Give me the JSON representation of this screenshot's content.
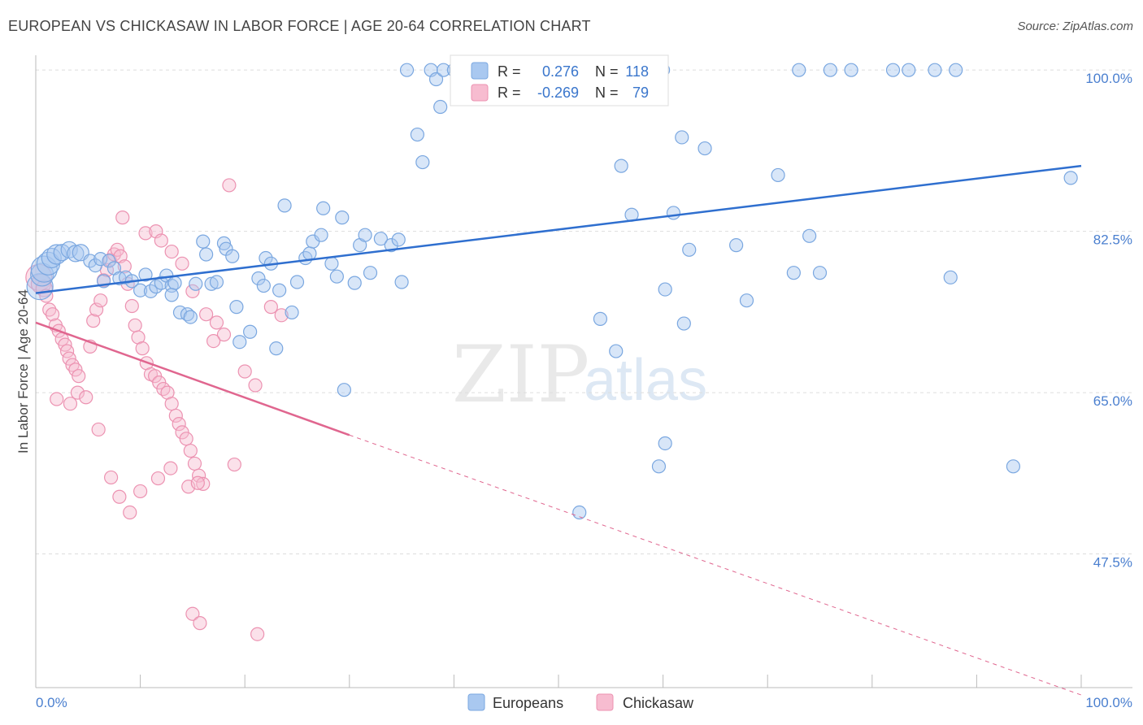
{
  "title": "EUROPEAN VS CHICKASAW IN LABOR FORCE | AGE 20-64 CORRELATION CHART",
  "source": "Source: ZipAtlas.com",
  "watermark": {
    "zip": "ZIP",
    "atlas": "atlas"
  },
  "colors": {
    "europeans_fill": "#a9c8f0",
    "europeans_stroke": "#7aa7e0",
    "europeans_line": "#2f6fcf",
    "chickasaw_fill": "#f7bcd0",
    "chickasaw_stroke": "#ec92b1",
    "chickasaw_line": "#e0668f",
    "grid": "#dddddd",
    "tick_text": "#4a7fcf"
  },
  "stats_box": {
    "rows": [
      {
        "r_label": "R =",
        "r_value": "0.276",
        "n_label": "N =",
        "n_value": "118"
      },
      {
        "r_label": "R =",
        "r_value": "-0.269",
        "n_label": "N =",
        "n_value": "79"
      }
    ]
  },
  "legend": {
    "items": [
      {
        "label": "Europeans"
      },
      {
        "label": "Chickasaw"
      }
    ]
  },
  "chart_data": {
    "type": "scatter",
    "title": "EUROPEAN VS CHICKASAW IN LABOR FORCE | AGE 20-64 CORRELATION CHART",
    "xlabel": "",
    "ylabel": "In Labor Force | Age 20-64",
    "xlim": [
      0,
      100
    ],
    "ylim": [
      33,
      102
    ],
    "x_tick_labels": [
      "0.0%",
      "100.0%"
    ],
    "y_ticks": [
      47.5,
      65.0,
      82.5,
      100.0
    ],
    "y_tick_labels": [
      "47.5%",
      "65.0%",
      "82.5%",
      "100.0%"
    ],
    "grid": true,
    "legend_position": "bottom-center",
    "series": [
      {
        "name": "Europeans",
        "R": 0.276,
        "N": 118,
        "trend": {
          "x0": 0,
          "y0": 75.8,
          "x1": 100,
          "y1": 89.6
        },
        "points": [
          [
            0.4,
            76.5,
            16
          ],
          [
            0.6,
            77.8,
            14
          ],
          [
            0.8,
            78.4,
            16
          ],
          [
            1.2,
            79.0,
            14
          ],
          [
            1.5,
            79.6,
            12
          ],
          [
            2.0,
            80.0,
            12
          ],
          [
            2.5,
            80.2,
            10
          ],
          [
            3.2,
            80.5,
            10
          ],
          [
            3.8,
            80.1,
            10
          ],
          [
            4.3,
            80.2,
            10
          ],
          [
            5.2,
            79.3,
            8
          ],
          [
            5.7,
            78.8,
            8
          ],
          [
            6.2,
            79.5,
            8
          ],
          [
            6.5,
            77.1,
            8
          ],
          [
            7.0,
            79.3,
            8
          ],
          [
            7.5,
            78.5,
            8
          ],
          [
            8.0,
            77.4,
            8
          ],
          [
            8.6,
            77.5,
            8
          ],
          [
            9.2,
            77.1,
            8
          ],
          [
            10.0,
            76.1,
            8
          ],
          [
            10.5,
            77.8,
            8
          ],
          [
            11.0,
            76.0,
            8
          ],
          [
            11.5,
            76.5,
            8
          ],
          [
            12.0,
            76.9,
            8
          ],
          [
            12.5,
            77.7,
            8
          ],
          [
            13.0,
            76.6,
            8
          ],
          [
            13.3,
            76.9,
            8
          ],
          [
            13.0,
            75.6,
            8
          ],
          [
            13.8,
            73.7,
            8
          ],
          [
            14.5,
            73.5,
            8
          ],
          [
            14.8,
            73.2,
            8
          ],
          [
            15.3,
            76.8,
            8
          ],
          [
            16.3,
            80.0,
            8
          ],
          [
            16.0,
            81.4,
            8
          ],
          [
            16.8,
            76.8,
            8
          ],
          [
            17.3,
            77.0,
            8
          ],
          [
            18.0,
            81.2,
            8
          ],
          [
            18.2,
            80.6,
            8
          ],
          [
            18.8,
            79.8,
            8
          ],
          [
            19.2,
            74.3,
            8
          ],
          [
            19.5,
            70.5,
            8
          ],
          [
            20.5,
            71.6,
            8
          ],
          [
            21.3,
            77.4,
            8
          ],
          [
            21.8,
            76.6,
            8
          ],
          [
            22.0,
            79.6,
            8
          ],
          [
            22.5,
            79.0,
            8
          ],
          [
            23.0,
            69.8,
            8
          ],
          [
            23.3,
            76.1,
            8
          ],
          [
            23.8,
            85.3,
            8
          ],
          [
            24.5,
            73.7,
            8
          ],
          [
            25.0,
            77.0,
            8
          ],
          [
            25.8,
            79.6,
            8
          ],
          [
            26.2,
            80.1,
            8
          ],
          [
            26.5,
            81.4,
            8
          ],
          [
            27.3,
            82.1,
            8
          ],
          [
            27.5,
            85.0,
            8
          ],
          [
            28.3,
            79.0,
            8
          ],
          [
            28.8,
            77.6,
            8
          ],
          [
            29.3,
            84.0,
            8
          ],
          [
            29.5,
            65.3,
            8
          ],
          [
            30.5,
            76.9,
            8
          ],
          [
            31.0,
            81.0,
            8
          ],
          [
            31.5,
            82.1,
            8
          ],
          [
            32.0,
            78.0,
            8
          ],
          [
            33.0,
            81.7,
            8
          ],
          [
            34.0,
            81.0,
            8
          ],
          [
            34.7,
            81.6,
            8
          ],
          [
            35.0,
            77.0,
            8
          ],
          [
            35.5,
            100.0,
            8
          ],
          [
            36.5,
            93.0,
            8
          ],
          [
            37.0,
            90.0,
            8
          ],
          [
            37.8,
            100.0,
            8
          ],
          [
            38.3,
            99.0,
            8
          ],
          [
            38.7,
            96.0,
            8
          ],
          [
            39.0,
            100.0,
            8
          ],
          [
            40.0,
            100.0,
            8
          ],
          [
            41.2,
            100.0,
            8
          ],
          [
            41.5,
            100.0,
            8
          ],
          [
            44.0,
            100.0,
            8
          ],
          [
            45.3,
            97.0,
            8
          ],
          [
            46.2,
            100.0,
            8
          ],
          [
            47.0,
            100.0,
            8
          ],
          [
            48.3,
            100.0,
            8
          ],
          [
            49.0,
            100.0,
            8
          ],
          [
            49.5,
            100.0,
            8
          ],
          [
            50.5,
            100.0,
            8
          ],
          [
            52.5,
            100.0,
            8
          ],
          [
            54.5,
            100.0,
            8
          ],
          [
            55.2,
            100.0,
            8
          ],
          [
            55.8,
            100.0,
            8
          ],
          [
            56.0,
            89.6,
            8
          ],
          [
            57.0,
            84.3,
            8
          ],
          [
            58.5,
            100.0,
            8
          ],
          [
            59.0,
            100.0,
            8
          ],
          [
            60.0,
            100.0,
            8
          ],
          [
            61.0,
            84.5,
            8
          ],
          [
            60.2,
            59.5,
            8
          ],
          [
            59.6,
            57.0,
            8
          ],
          [
            52.0,
            52.0,
            8
          ],
          [
            54.0,
            73.0,
            8
          ],
          [
            55.5,
            69.5,
            8
          ],
          [
            62.0,
            72.5,
            8
          ],
          [
            62.5,
            80.5,
            8
          ],
          [
            60.2,
            76.2,
            8
          ],
          [
            61.8,
            92.7,
            8
          ],
          [
            64.0,
            91.5,
            8
          ],
          [
            71.0,
            88.6,
            8
          ],
          [
            73.0,
            100.0,
            8
          ],
          [
            76.0,
            100.0,
            8
          ],
          [
            78.0,
            100.0,
            8
          ],
          [
            82.0,
            100.0,
            8
          ],
          [
            83.5,
            100.0,
            8
          ],
          [
            86.0,
            100.0,
            8
          ],
          [
            88.0,
            100.0,
            8
          ],
          [
            87.5,
            77.5,
            8
          ],
          [
            93.5,
            57.0,
            8
          ],
          [
            74.0,
            82.0,
            8
          ],
          [
            75.0,
            78.0,
            8
          ],
          [
            99.0,
            88.3,
            8
          ],
          [
            72.5,
            78.0,
            8
          ],
          [
            67.0,
            81.0,
            8
          ],
          [
            68.0,
            75.0,
            8
          ]
        ]
      },
      {
        "name": "Chickasaw",
        "R": -0.269,
        "N": 79,
        "trend": {
          "x0": 0,
          "y0": 72.6,
          "x1": 30,
          "y1": 60.4,
          "dash_to_x": 100,
          "dash_to_y": 32.2
        },
        "points": [
          [
            0.3,
            77.5,
            16
          ],
          [
            0.5,
            76.8,
            12
          ],
          [
            0.8,
            76.3,
            10
          ],
          [
            1.0,
            75.5,
            8
          ],
          [
            1.3,
            74.0,
            8
          ],
          [
            1.6,
            73.5,
            8
          ],
          [
            1.9,
            72.3,
            8
          ],
          [
            2.2,
            71.7,
            8
          ],
          [
            2.5,
            70.8,
            8
          ],
          [
            2.8,
            70.2,
            8
          ],
          [
            3.0,
            69.5,
            8
          ],
          [
            3.2,
            68.7,
            8
          ],
          [
            3.5,
            68.0,
            8
          ],
          [
            3.8,
            67.5,
            8
          ],
          [
            4.1,
            66.8,
            8
          ],
          [
            2.0,
            64.3,
            8
          ],
          [
            3.3,
            63.8,
            8
          ],
          [
            4.0,
            65.0,
            8
          ],
          [
            4.8,
            64.5,
            8
          ],
          [
            5.2,
            70.0,
            8
          ],
          [
            5.5,
            72.8,
            8
          ],
          [
            5.8,
            74.0,
            8
          ],
          [
            6.2,
            75.0,
            8
          ],
          [
            6.5,
            77.2,
            8
          ],
          [
            6.8,
            78.3,
            8
          ],
          [
            7.1,
            79.4,
            8
          ],
          [
            7.5,
            80.0,
            8
          ],
          [
            7.8,
            80.5,
            8
          ],
          [
            8.1,
            79.8,
            8
          ],
          [
            8.5,
            78.7,
            8
          ],
          [
            8.8,
            76.8,
            8
          ],
          [
            9.2,
            74.4,
            8
          ],
          [
            9.5,
            72.3,
            8
          ],
          [
            9.8,
            71.0,
            8
          ],
          [
            10.2,
            69.8,
            8
          ],
          [
            10.6,
            68.2,
            8
          ],
          [
            11.0,
            67.0,
            8
          ],
          [
            11.4,
            66.8,
            8
          ],
          [
            11.8,
            66.1,
            8
          ],
          [
            12.2,
            65.4,
            8
          ],
          [
            12.6,
            65.0,
            8
          ],
          [
            13.0,
            63.8,
            8
          ],
          [
            13.4,
            62.5,
            8
          ],
          [
            13.7,
            61.6,
            8
          ],
          [
            14.0,
            60.7,
            8
          ],
          [
            14.4,
            60.0,
            8
          ],
          [
            14.8,
            58.7,
            8
          ],
          [
            15.2,
            57.3,
            8
          ],
          [
            15.6,
            56.0,
            8
          ],
          [
            16.0,
            55.1,
            8
          ],
          [
            8.3,
            84.0,
            8
          ],
          [
            10.5,
            82.3,
            8
          ],
          [
            11.5,
            82.5,
            8
          ],
          [
            12.0,
            81.5,
            8
          ],
          [
            13.0,
            80.3,
            8
          ],
          [
            14.0,
            79.0,
            8
          ],
          [
            15.0,
            76.0,
            8
          ],
          [
            16.3,
            73.5,
            8
          ],
          [
            17.3,
            72.6,
            8
          ],
          [
            18.0,
            71.3,
            8
          ],
          [
            17.0,
            70.6,
            8
          ],
          [
            18.5,
            87.5,
            8
          ],
          [
            20.0,
            67.3,
            8
          ],
          [
            21.0,
            65.8,
            8
          ],
          [
            22.5,
            74.3,
            8
          ],
          [
            23.5,
            73.4,
            8
          ],
          [
            6.0,
            61.0,
            8
          ],
          [
            7.2,
            55.8,
            8
          ],
          [
            8.0,
            53.7,
            8
          ],
          [
            9.0,
            52.0,
            8
          ],
          [
            10.0,
            54.3,
            8
          ],
          [
            11.7,
            55.7,
            8
          ],
          [
            12.9,
            56.8,
            8
          ],
          [
            14.6,
            54.8,
            8
          ],
          [
            15.5,
            55.2,
            8
          ],
          [
            19.0,
            57.2,
            8
          ],
          [
            15.0,
            41.0,
            8
          ],
          [
            15.7,
            40.0,
            8
          ],
          [
            21.2,
            38.8,
            8
          ]
        ]
      }
    ]
  }
}
